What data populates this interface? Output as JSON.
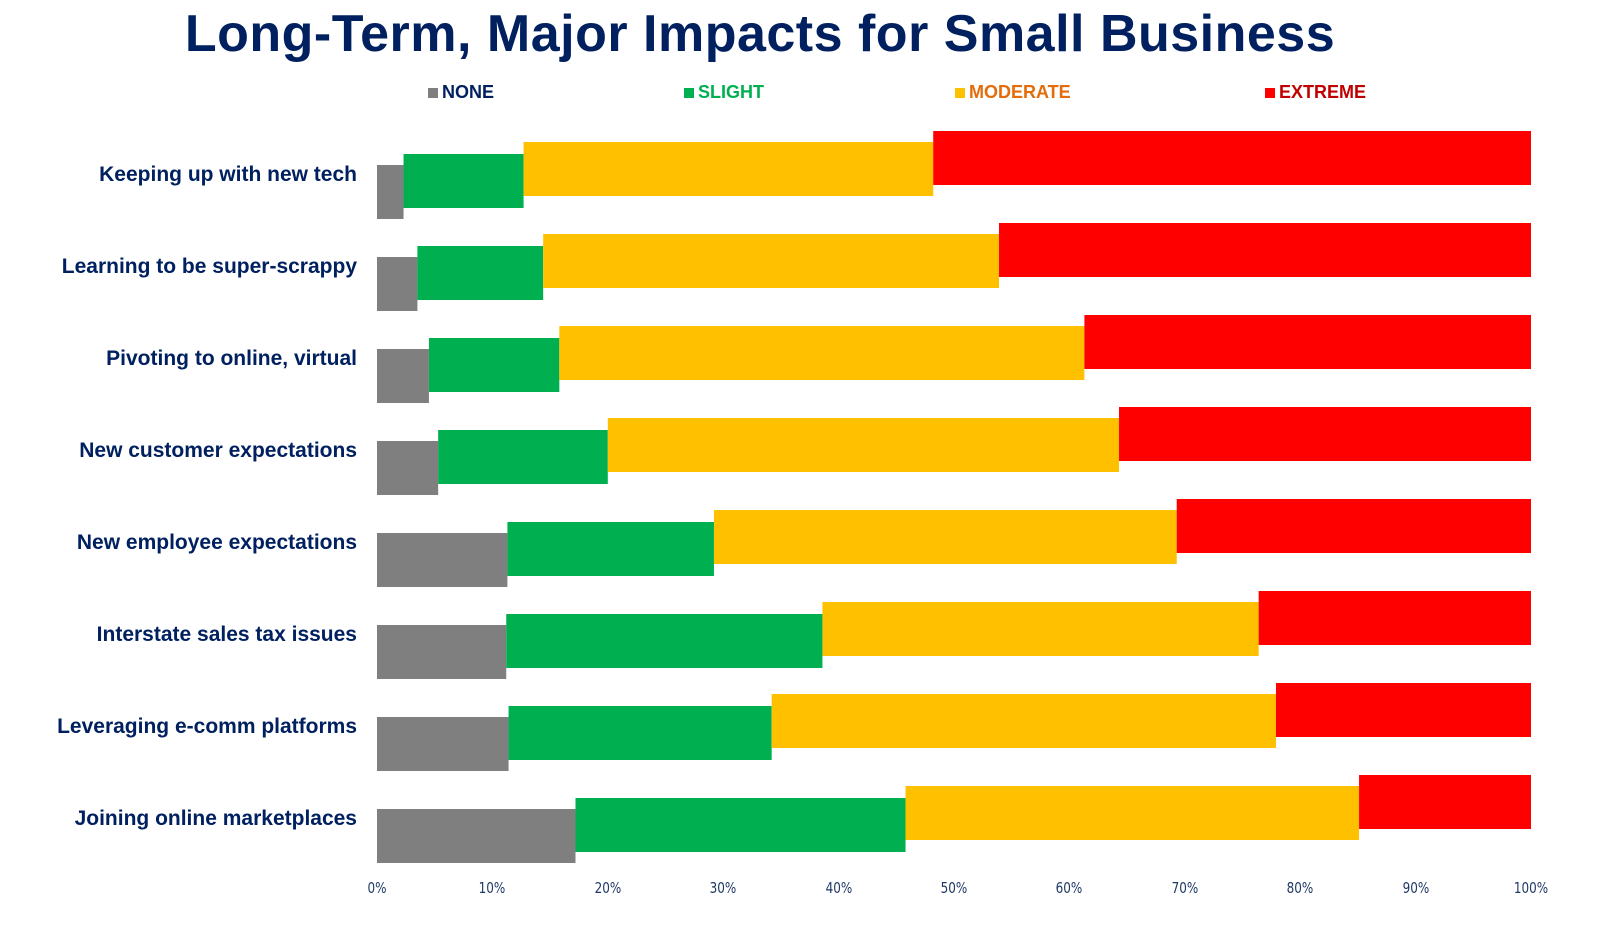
{
  "chart_data": {
    "type": "bar",
    "orientation": "horizontal",
    "stacked": true,
    "title": "Long-Term, Major Impacts for Small Business",
    "xlabel": "",
    "ylabel": "",
    "xlim": [
      0,
      100
    ],
    "x_ticks": [
      "0%",
      "10%",
      "20%",
      "30%",
      "40%",
      "50%",
      "60%",
      "70%",
      "80%",
      "90%",
      "100%"
    ],
    "grid": false,
    "legend_position": "top",
    "categories": [
      "Keeping up with new tech",
      "Learning to be super-scrappy",
      "Pivoting to online, virtual",
      "New customer expectations",
      "New employee expectations",
      "Interstate sales tax issues",
      "Leveraging e-comm platforms",
      "Joining online marketplaces"
    ],
    "series": [
      {
        "name": "NONE",
        "color": "#7F7F7F",
        "label_color": "#002060",
        "values": [
          2.3,
          3.5,
          4.5,
          5.3,
          11.3,
          11.2,
          11.4,
          17.2
        ]
      },
      {
        "name": "SLIGHT",
        "color": "#00B050",
        "label_color": "#00B050",
        "values": [
          10.4,
          10.9,
          11.3,
          14.7,
          17.9,
          27.4,
          22.8,
          28.6
        ]
      },
      {
        "name": "MODERATE",
        "color": "#FFC000",
        "label_color": "#E46C0A",
        "values": [
          35.5,
          39.5,
          45.5,
          44.3,
          40.1,
          37.8,
          43.7,
          39.3
        ]
      },
      {
        "name": "EXTREME",
        "color": "#FF0000",
        "label_color": "#C00000",
        "values": [
          51.8,
          46.1,
          38.7,
          35.7,
          30.7,
          23.6,
          22.1,
          14.9
        ]
      }
    ]
  }
}
